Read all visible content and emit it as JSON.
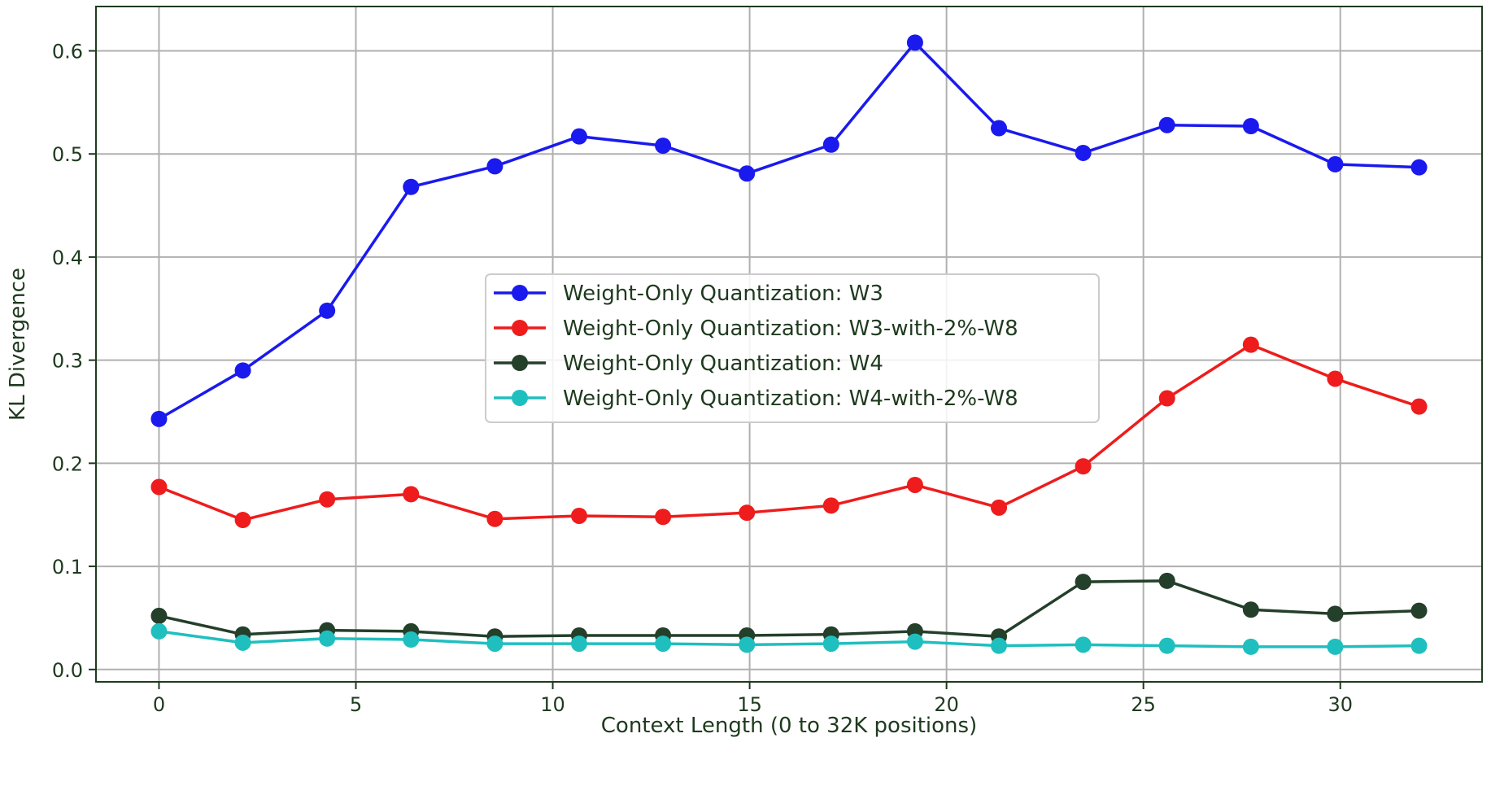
{
  "chart_data": {
    "type": "line",
    "title": "",
    "xlabel": "Context Length (0 to 32K positions)",
    "ylabel": "KL Divergence",
    "xlim": [
      -1.6,
      33.6
    ],
    "ylim": [
      -0.012,
      0.643
    ],
    "xticks": [
      0,
      5,
      10,
      15,
      20,
      25,
      30
    ],
    "yticks": [
      0.0,
      0.1,
      0.2,
      0.3,
      0.4,
      0.5,
      0.6
    ],
    "ytick_labels": [
      "0.0",
      "0.1",
      "0.2",
      "0.3",
      "0.4",
      "0.5",
      "0.6"
    ],
    "grid": true,
    "legend_position": "center",
    "x": [
      0,
      2.13,
      4.27,
      6.4,
      8.53,
      10.67,
      12.8,
      14.93,
      17.07,
      19.2,
      21.33,
      23.47,
      25.6,
      27.73,
      29.87,
      32.0
    ],
    "series": [
      {
        "name": "Weight-Only Quantization: W3",
        "color": "#1a1aee",
        "values": [
          0.243,
          0.29,
          0.348,
          0.468,
          0.488,
          0.517,
          0.508,
          0.481,
          0.509,
          0.608,
          0.525,
          0.501,
          0.528,
          0.527,
          0.49,
          0.487
        ]
      },
      {
        "name": "Weight-Only Quantization: W3-with-2%-W8",
        "color": "#ee1c1c",
        "values": [
          0.177,
          0.145,
          0.165,
          0.17,
          0.146,
          0.149,
          0.148,
          0.152,
          0.159,
          0.179,
          0.157,
          0.197,
          0.263,
          0.315,
          0.282,
          0.255
        ]
      },
      {
        "name": "Weight-Only Quantization: W4",
        "color": "#243f2a",
        "values": [
          0.052,
          0.034,
          0.038,
          0.037,
          0.032,
          0.033,
          0.033,
          0.033,
          0.034,
          0.037,
          0.032,
          0.085,
          0.086,
          0.058,
          0.054,
          0.057
        ]
      },
      {
        "name": "Weight-Only Quantization: W4-with-2%-W8",
        "color": "#1fbfbf",
        "values": [
          0.037,
          0.026,
          0.03,
          0.029,
          0.025,
          0.025,
          0.025,
          0.024,
          0.025,
          0.027,
          0.023,
          0.024,
          0.023,
          0.022,
          0.022,
          0.023
        ]
      }
    ]
  }
}
